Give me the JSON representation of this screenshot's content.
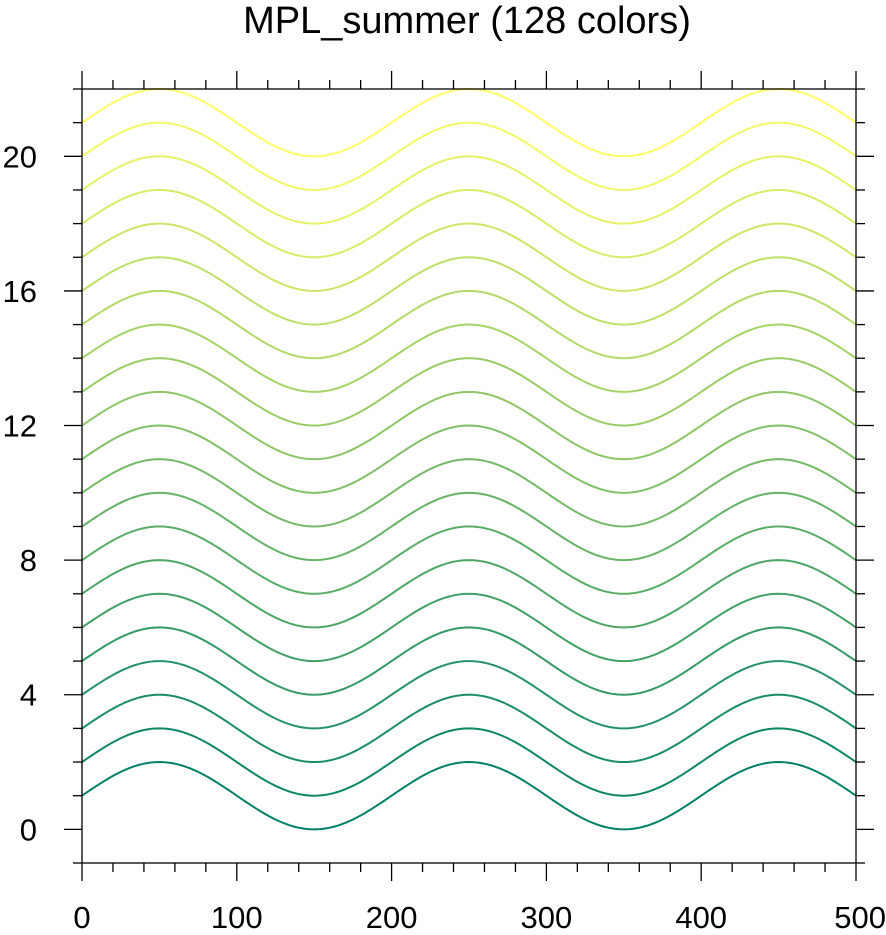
{
  "chart_data": {
    "type": "line",
    "title": "MPL_summer (128 colors)",
    "xlabel": "",
    "ylabel": "",
    "xlim": [
      0,
      500
    ],
    "ylim": [
      -1,
      22
    ],
    "grid": false,
    "x_ticks": [
      0,
      100,
      200,
      300,
      400,
      500
    ],
    "y_ticks": [
      0,
      4,
      8,
      12,
      16,
      20
    ],
    "x_ticks_minor_step": 20,
    "y_ticks_minor_step": 1,
    "colormap": "MPL_summer",
    "color_start": "#008066",
    "color_end": "#FFFF66",
    "series_function": "y = offset + sin(2*pi*(x - 0)/200) ... offset + 1 + sin(pi*x/100)",
    "x": [
      0,
      25,
      50,
      75,
      100,
      125,
      150,
      175,
      200,
      225,
      250,
      275,
      300,
      325,
      350,
      375,
      400,
      425,
      450,
      475,
      500
    ],
    "series": [
      {
        "offset": 0,
        "color": "#008066"
      },
      {
        "offset": 1,
        "color": "#0d8666"
      },
      {
        "offset": 2,
        "color": "#1a8d66"
      },
      {
        "offset": 3,
        "color": "#269366"
      },
      {
        "offset": 4,
        "color": "#339966"
      },
      {
        "offset": 5,
        "color": "#40a066"
      },
      {
        "offset": 6,
        "color": "#4da666"
      },
      {
        "offset": 7,
        "color": "#59ad66"
      },
      {
        "offset": 8,
        "color": "#66b366"
      },
      {
        "offset": 9,
        "color": "#73b966"
      },
      {
        "offset": 10,
        "color": "#80c066"
      },
      {
        "offset": 11,
        "color": "#8cc666"
      },
      {
        "offset": 12,
        "color": "#99cc66"
      },
      {
        "offset": 13,
        "color": "#a6d366"
      },
      {
        "offset": 14,
        "color": "#b3d966"
      },
      {
        "offset": 15,
        "color": "#bfdf66"
      },
      {
        "offset": 16,
        "color": "#cce666"
      },
      {
        "offset": 17,
        "color": "#d9ec66"
      },
      {
        "offset": 18,
        "color": "#e6f266"
      },
      {
        "offset": 19,
        "color": "#f2f966"
      },
      {
        "offset": 20,
        "color": "#ffff66"
      }
    ]
  }
}
